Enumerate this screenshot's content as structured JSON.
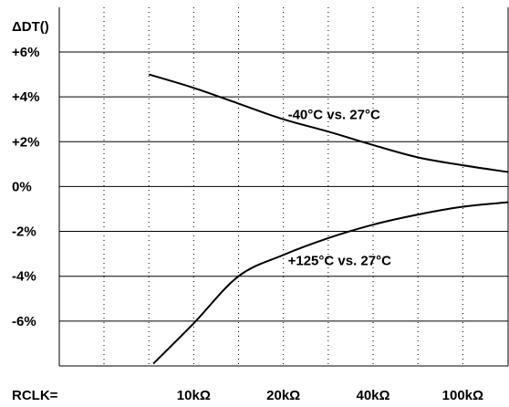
{
  "chart_data": {
    "type": "line",
    "ylabel": "ΔDT()",
    "y_ticks": [
      "+6%",
      "+4%",
      "+2%",
      "0%",
      "-2%",
      "-4%",
      "-6%"
    ],
    "y_tick_values": [
      6,
      4,
      2,
      0,
      -2,
      -4,
      -6
    ],
    "ylim": [
      -8,
      6
    ],
    "x_prefix": "RCLK=",
    "x_ticks": [
      "10kΩ",
      "20kΩ",
      "40kΩ",
      "100kΩ"
    ],
    "x_tick_positions": [
      1,
      2,
      3,
      4
    ],
    "xlim": [
      -0.5,
      5.0
    ],
    "series": [
      {
        "name": "-40°C vs.  27°C",
        "label_at": {
          "x": 2.05,
          "y": 3.0
        },
        "points": [
          [
            0.5,
            5.0
          ],
          [
            1.0,
            4.4
          ],
          [
            1.5,
            3.7
          ],
          [
            2.0,
            3.0
          ],
          [
            2.5,
            2.45
          ],
          [
            3.0,
            1.85
          ],
          [
            3.5,
            1.3
          ],
          [
            4.0,
            0.95
          ],
          [
            4.5,
            0.65
          ]
        ]
      },
      {
        "name": "+125°C vs.  27°C",
        "label_at": {
          "x": 2.05,
          "y": -3.5
        },
        "points": [
          [
            0.55,
            -7.9
          ],
          [
            1.0,
            -6.1
          ],
          [
            1.5,
            -4.0
          ],
          [
            2.0,
            -3.05
          ],
          [
            2.5,
            -2.3
          ],
          [
            3.0,
            -1.7
          ],
          [
            3.5,
            -1.25
          ],
          [
            4.0,
            -0.9
          ],
          [
            4.5,
            -0.7
          ]
        ]
      }
    ],
    "grid": {
      "horizontal": "solid",
      "vertical": "dotted"
    },
    "colors": {
      "line": "#000000",
      "grid": "#000000",
      "background": "#ffffff"
    }
  }
}
